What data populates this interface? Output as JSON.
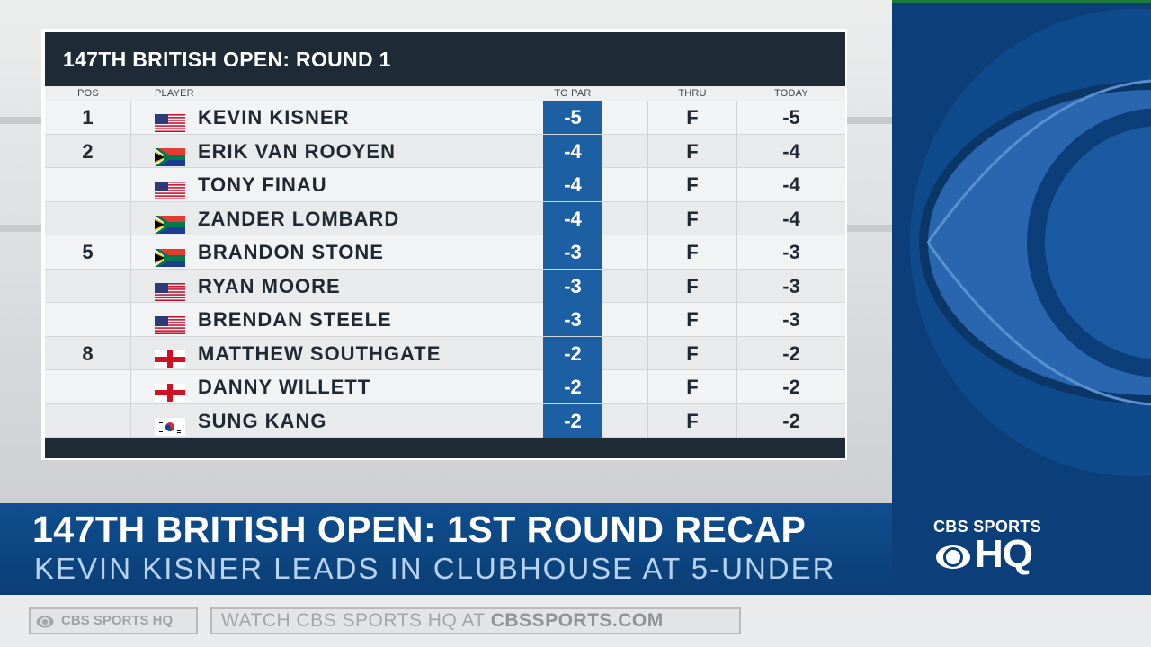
{
  "board": {
    "title": "147TH BRITISH OPEN: ROUND 1",
    "columns": {
      "pos": "POS",
      "player": "PLAYER",
      "to_par": "TO PAR",
      "thru": "THRU",
      "today": "TODAY"
    },
    "rows": [
      {
        "pos": "1",
        "flag": "usa",
        "name": "KEVIN KISNER",
        "to_par": "-5",
        "thru": "F",
        "today": "-5"
      },
      {
        "pos": "2",
        "flag": "rsa",
        "name": "ERIK VAN ROOYEN",
        "to_par": "-4",
        "thru": "F",
        "today": "-4"
      },
      {
        "pos": "",
        "flag": "usa",
        "name": "TONY FINAU",
        "to_par": "-4",
        "thru": "F",
        "today": "-4"
      },
      {
        "pos": "",
        "flag": "rsa",
        "name": "ZANDER LOMBARD",
        "to_par": "-4",
        "thru": "F",
        "today": "-4"
      },
      {
        "pos": "5",
        "flag": "rsa",
        "name": "BRANDON STONE",
        "to_par": "-3",
        "thru": "F",
        "today": "-3"
      },
      {
        "pos": "",
        "flag": "usa",
        "name": "RYAN MOORE",
        "to_par": "-3",
        "thru": "F",
        "today": "-3"
      },
      {
        "pos": "",
        "flag": "usa",
        "name": "BRENDAN STEELE",
        "to_par": "-3",
        "thru": "F",
        "today": "-3"
      },
      {
        "pos": "8",
        "flag": "eng",
        "name": "MATTHEW SOUTHGATE",
        "to_par": "-2",
        "thru": "F",
        "today": "-2"
      },
      {
        "pos": "",
        "flag": "eng",
        "name": "DANNY WILLETT",
        "to_par": "-2",
        "thru": "F",
        "today": "-2"
      },
      {
        "pos": "",
        "flag": "kor",
        "name": "SUNG KANG",
        "to_par": "-2",
        "thru": "F",
        "today": "-2"
      }
    ]
  },
  "lower_third": {
    "headline": "147TH BRITISH OPEN: 1ST ROUND RECAP",
    "subline": "KEVIN KISNER LEADS IN CLUBHOUSE AT 5-UNDER"
  },
  "brand": {
    "sports": "CBS SPORTS",
    "hq": "HQ"
  },
  "ticker": {
    "logo_text": "CBS SPORTS HQ",
    "message_prefix": "WATCH CBS SPORTS HQ AT ",
    "message_site": "CBSSPORTS.COM"
  },
  "colors": {
    "accent_blue": "#1d5fa3",
    "header_dark": "#1e2a36",
    "brand_blue": "#0c3f7a"
  }
}
